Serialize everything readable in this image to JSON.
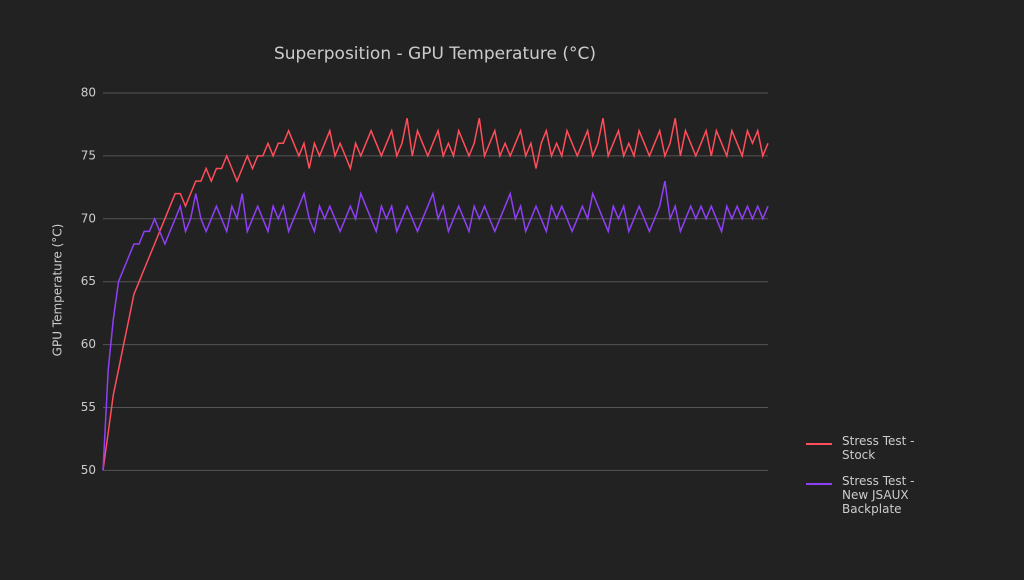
{
  "chart_data": {
    "type": "line",
    "title": "Superposition - GPU Temperature (°C)",
    "y_label": "GPU Temperature (°C)",
    "ylim": [
      49,
      80
    ],
    "yticks": [
      50,
      55,
      60,
      65,
      70,
      75,
      80
    ],
    "grid": true,
    "legend": "right",
    "series": [
      {
        "name": "Stress Test - Stock",
        "color": "#ff4d5a",
        "values": [
          50,
          53,
          56,
          58,
          60,
          62,
          64,
          65,
          66,
          67,
          68,
          69,
          70,
          71,
          72,
          72,
          71,
          72,
          73,
          73,
          74,
          73,
          74,
          74,
          75,
          74,
          73,
          74,
          75,
          74,
          75,
          75,
          76,
          75,
          76,
          76,
          77,
          76,
          75,
          76,
          74,
          76,
          75,
          76,
          77,
          75,
          76,
          75,
          74,
          76,
          75,
          76,
          77,
          76,
          75,
          76,
          77,
          75,
          76,
          78,
          75,
          77,
          76,
          75,
          76,
          77,
          75,
          76,
          75,
          77,
          76,
          75,
          76,
          78,
          75,
          76,
          77,
          75,
          76,
          75,
          76,
          77,
          75,
          76,
          74,
          76,
          77,
          75,
          76,
          75,
          77,
          76,
          75,
          76,
          77,
          75,
          76,
          78,
          75,
          76,
          77,
          75,
          76,
          75,
          77,
          76,
          75,
          76,
          77,
          75,
          76,
          78,
          75,
          77,
          76,
          75,
          76,
          77,
          75,
          77,
          76,
          75,
          77,
          76,
          75,
          77,
          76,
          77,
          75,
          76
        ]
      },
      {
        "name": "Stress Test - New JSAUX Backplate",
        "color": "#8f3ff5",
        "values": [
          50,
          58,
          62,
          65,
          66,
          67,
          68,
          68,
          69,
          69,
          70,
          69,
          68,
          69,
          70,
          71,
          69,
          70,
          72,
          70,
          69,
          70,
          71,
          70,
          69,
          71,
          70,
          72,
          69,
          70,
          71,
          70,
          69,
          71,
          70,
          71,
          69,
          70,
          71,
          72,
          70,
          69,
          71,
          70,
          71,
          70,
          69,
          70,
          71,
          70,
          72,
          71,
          70,
          69,
          71,
          70,
          71,
          69,
          70,
          71,
          70,
          69,
          70,
          71,
          72,
          70,
          71,
          69,
          70,
          71,
          70,
          69,
          71,
          70,
          71,
          70,
          69,
          70,
          71,
          72,
          70,
          71,
          69,
          70,
          71,
          70,
          69,
          71,
          70,
          71,
          70,
          69,
          70,
          71,
          70,
          72,
          71,
          70,
          69,
          71,
          70,
          71,
          69,
          70,
          71,
          70,
          69,
          70,
          71,
          73,
          70,
          71,
          69,
          70,
          71,
          70,
          71,
          70,
          71,
          70,
          69,
          71,
          70,
          71,
          70,
          71,
          70,
          71,
          70,
          71
        ]
      }
    ]
  }
}
